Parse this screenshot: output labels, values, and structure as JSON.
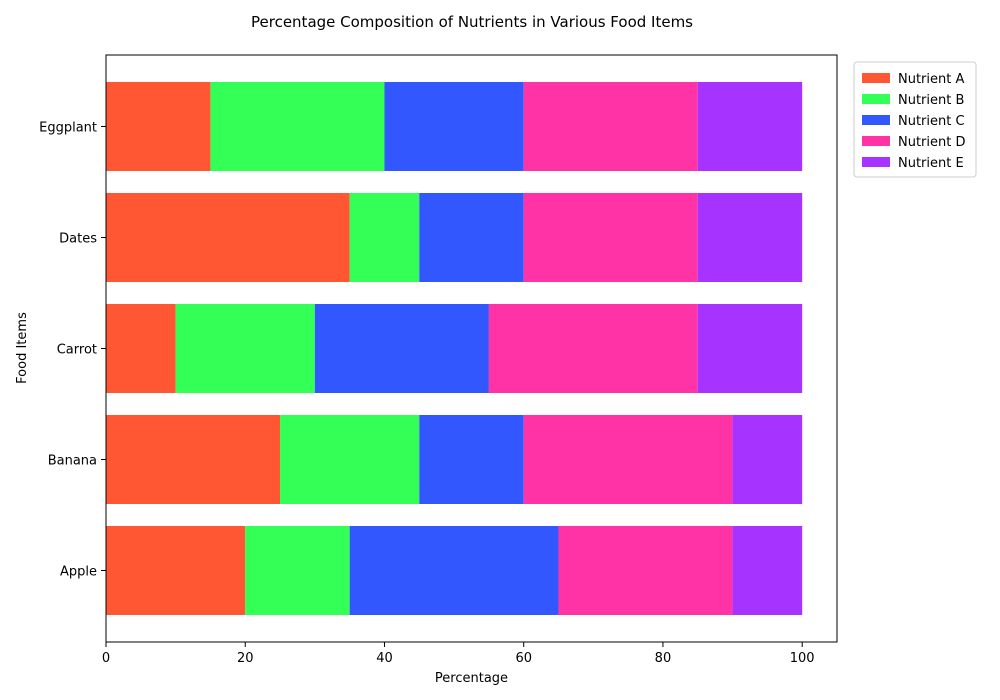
{
  "chart_data": {
    "type": "bar",
    "orientation": "horizontal",
    "stacked": true,
    "title": "Percentage Composition of Nutrients in Various Food Items",
    "xlabel": "Percentage",
    "ylabel": "Food Items",
    "xlim": [
      0,
      105
    ],
    "xticks": [
      0,
      20,
      40,
      60,
      80,
      100
    ],
    "grid": false,
    "legend_position": "top-right outside",
    "categories": [
      "Apple",
      "Banana",
      "Carrot",
      "Dates",
      "Eggplant"
    ],
    "series": [
      {
        "name": "Nutrient A",
        "color": "#ff5733",
        "values": [
          20,
          25,
          10,
          35,
          15
        ]
      },
      {
        "name": "Nutrient B",
        "color": "#33ff57",
        "values": [
          15,
          20,
          20,
          10,
          25
        ]
      },
      {
        "name": "Nutrient C",
        "color": "#3357ff",
        "values": [
          30,
          15,
          25,
          15,
          20
        ]
      },
      {
        "name": "Nutrient D",
        "color": "#ff33a6",
        "values": [
          25,
          30,
          30,
          25,
          25
        ]
      },
      {
        "name": "Nutrient E",
        "color": "#a633ff",
        "values": [
          10,
          10,
          15,
          15,
          15
        ]
      }
    ]
  }
}
